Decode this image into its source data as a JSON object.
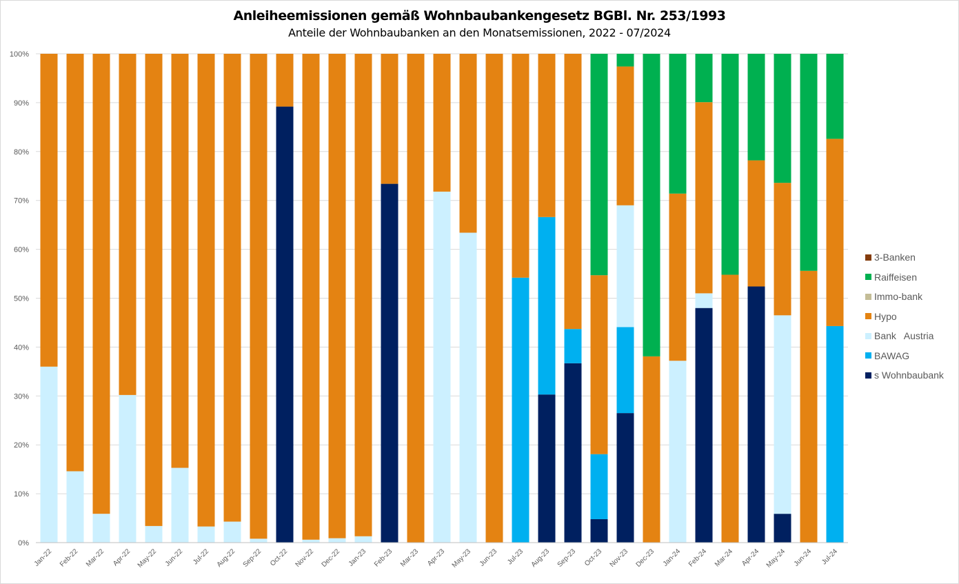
{
  "chart_data": {
    "type": "bar",
    "stacked": "percent",
    "title": "Anleiheemissionen gemäß Wohnbaubankengesetz BGBl. Nr. 253/1993",
    "subtitle": "Anteile der Wohnbaubanken an den Monatsemissionen,  2022 - 07/2024",
    "xlabel": "",
    "ylabel": "",
    "ylim": [
      0,
      100
    ],
    "yticks": [
      "0%",
      "10%",
      "20%",
      "30%",
      "40%",
      "50%",
      "60%",
      "70%",
      "80%",
      "90%",
      "100%"
    ],
    "grid": true,
    "legend_position": "right",
    "categories": [
      "Jan-22",
      "Feb-22",
      "Mar-22",
      "Apr-22",
      "May-22",
      "Jun-22",
      "Jul-22",
      "Aug-22",
      "Sep-22",
      "Oct-22",
      "Nov-22",
      "Dec-22",
      "Jan-23",
      "Feb-23",
      "Mar-23",
      "Apr-23",
      "May-23",
      "Jun-23",
      "Jul-23",
      "Aug-23",
      "Sep-23",
      "Oct-23",
      "Nov-23",
      "Dec-23",
      "Jan-24",
      "Feb-24",
      "Mar-24",
      "Apr-24",
      "May-24",
      "Jun-24",
      "Jul-24"
    ],
    "series": [
      {
        "name": "s Wohnbaubank",
        "color": "#002060",
        "values": [
          0,
          0,
          0,
          0,
          0,
          0,
          0,
          0,
          0,
          89.2,
          0,
          0,
          0,
          73.4,
          0,
          0,
          0,
          0,
          0,
          30.3,
          36.7,
          4.8,
          26.5,
          0,
          0,
          48.0,
          0,
          52.4,
          5.9,
          0,
          0
        ]
      },
      {
        "name": "BAWAG",
        "color": "#00B0F0",
        "values": [
          0,
          0,
          0,
          0,
          0,
          0,
          0,
          0,
          0,
          0,
          0,
          0,
          0,
          0,
          0,
          0,
          0,
          0,
          54.2,
          36.3,
          7.0,
          13.3,
          17.6,
          0,
          0,
          0,
          0,
          0,
          0,
          0,
          44.3
        ]
      },
      {
        "name": "Bank   Austria",
        "color": "#CCF0FF",
        "values": [
          36.0,
          14.6,
          5.9,
          30.2,
          3.4,
          15.3,
          3.3,
          4.3,
          0.8,
          0,
          0.6,
          0.9,
          1.3,
          0,
          0,
          71.8,
          63.4,
          0,
          0,
          0,
          0,
          0,
          24.9,
          0,
          37.2,
          3.0,
          0,
          0,
          40.6,
          0,
          0
        ]
      },
      {
        "name": "Hypo",
        "color": "#E48312",
        "values": [
          64.0,
          85.4,
          94.1,
          69.8,
          96.6,
          84.7,
          96.7,
          95.7,
          99.2,
          10.8,
          99.4,
          99.1,
          98.7,
          26.6,
          100,
          28.2,
          36.6,
          100,
          45.8,
          33.4,
          56.3,
          36.6,
          28.4,
          38.1,
          34.2,
          39.1,
          54.8,
          25.8,
          27.1,
          55.6,
          38.3
        ]
      },
      {
        "name": "Immo-bank",
        "color": "#C4BD97",
        "values": [
          0,
          0,
          0,
          0,
          0,
          0,
          0,
          0,
          0,
          0,
          0,
          0,
          0,
          0,
          0,
          0,
          0,
          0,
          0,
          0,
          0,
          0,
          0,
          0,
          0,
          0,
          0,
          0,
          0,
          0,
          0
        ]
      },
      {
        "name": "Raiffeisen",
        "color": "#00B050",
        "values": [
          0,
          0,
          0,
          0,
          0,
          0,
          0,
          0,
          0,
          0,
          0,
          0,
          0,
          0,
          0,
          0,
          0,
          0,
          0,
          0,
          0,
          45.3,
          2.6,
          61.9,
          28.6,
          9.9,
          45.2,
          21.8,
          26.4,
          44.4,
          17.4
        ]
      },
      {
        "name": "3-Banken",
        "color": "#843C0C",
        "values": [
          0,
          0,
          0,
          0,
          0,
          0,
          0,
          0,
          0,
          0,
          0,
          0,
          0,
          0,
          0,
          0,
          0,
          0,
          0,
          0,
          0,
          0,
          0,
          0,
          0,
          0,
          0,
          0,
          0,
          0,
          0
        ]
      }
    ]
  }
}
